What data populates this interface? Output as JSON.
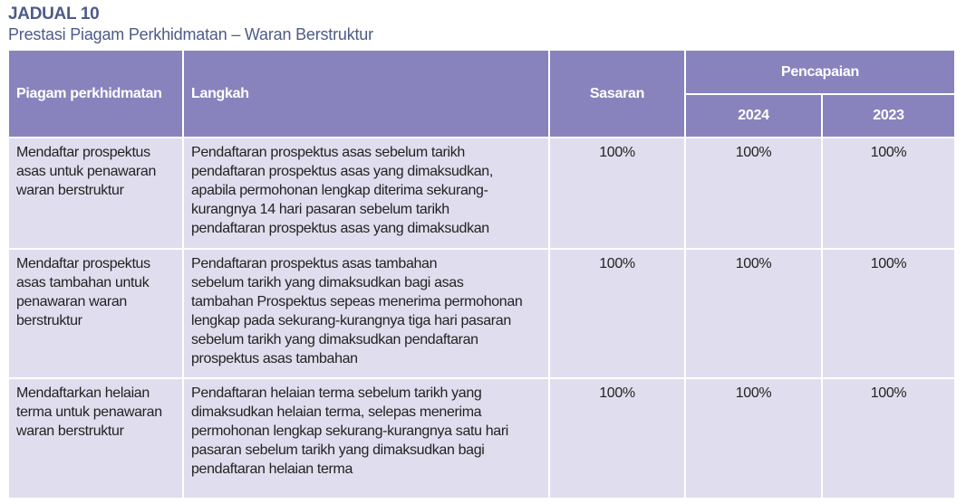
{
  "title": "JADUAL 10",
  "subtitle": "Prestasi Piagam Perkhidmatan – Waran Berstruktur",
  "colors": {
    "header_bg": "#8883bd",
    "row_bg": "#e0deee",
    "title": "#4d5b87"
  },
  "headers": {
    "piagam": "Piagam perkhidmatan",
    "langkah": "Langkah",
    "sasaran": "Sasaran",
    "pencapaian": "Pencapaian",
    "year1": "2024",
    "year2": "2023"
  },
  "rows": [
    {
      "piagam": "Mendaftar prospektus\nasas untuk penawaran\nwaran berstruktur",
      "langkah": "Pendaftaran prospektus asas sebelum tarikh\npendaftaran prospektus asas yang dimaksudkan,\napabila permohonan lengkap diterima sekurang-\nkurangnya 14 hari pasaran sebelum tarikh\npendaftaran prospektus asas yang dimaksudkan",
      "sasaran": "100%",
      "y2024": "100%",
      "y2023": "100%"
    },
    {
      "piagam": "Mendaftar prospektus\nasas tambahan untuk\npenawaran waran\nberstruktur",
      "langkah": "Pendaftaran prospektus asas tambahan\nsebelum tarikh yang dimaksudkan bagi asas\ntambahan Prospektus sepeas menerima permohonan\nlengkap pada sekurang-kurangnya tiga hari pasaran\nsebelum tarikh yang dimaksudkan pendaftaran\nprospektus asas tambahan",
      "sasaran": "100%",
      "y2024": "100%",
      "y2023": "100%"
    },
    {
      "piagam": "Mendaftarkan helaian\nterma untuk penawaran\nwaran berstruktur",
      "langkah": "Pendaftaran helaian terma sebelum tarikh yang\ndimaksudkan helaian terma, selepas menerima\npermohonan lengkap sekurang-kurangnya satu hari\npasaran sebelum tarikh yang dimaksudkan bagi\npendaftaran helaian terma",
      "sasaran": "100%",
      "y2024": "100%",
      "y2023": "100%"
    }
  ]
}
